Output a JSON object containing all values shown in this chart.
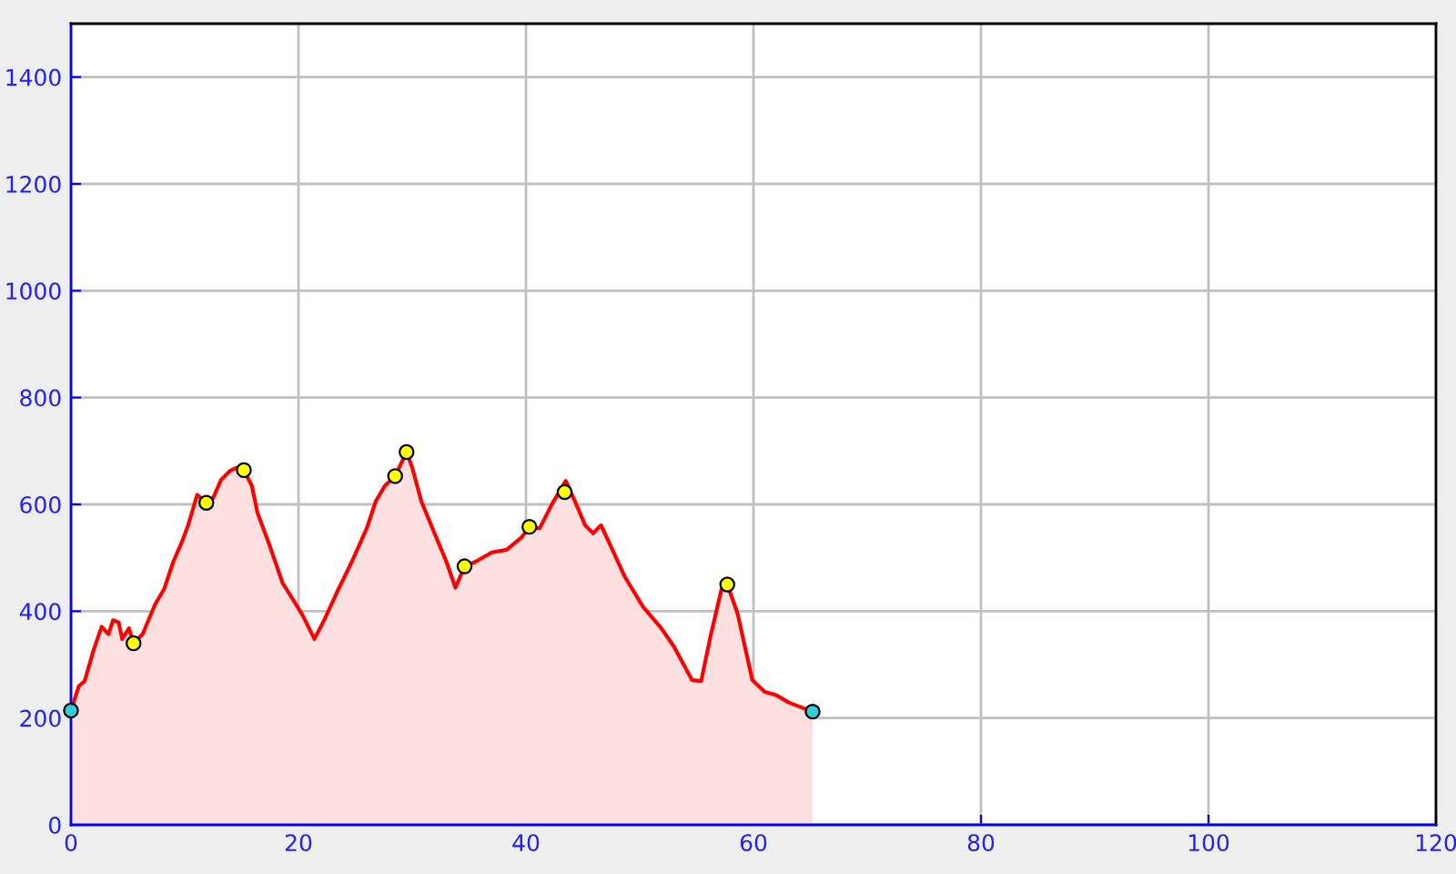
{
  "chart_data": {
    "type": "area",
    "xlim": [
      0,
      120
    ],
    "ylim": [
      0,
      1500
    ],
    "xticks": [
      0,
      20,
      40,
      60,
      80,
      100,
      120
    ],
    "yticks": [
      0,
      200,
      400,
      600,
      800,
      1000,
      1200,
      1400
    ],
    "grid": true,
    "series": [
      {
        "color": "#ff0000",
        "x": [
          0,
          0.7,
          1.2,
          2.0,
          2.7,
          3.3,
          3.7,
          4.2,
          4.5,
          5.1,
          5.5,
          6.3,
          7.4,
          8.2,
          9.0,
          9.8,
          10.3,
          11.1,
          11.9,
          12.5,
          13.2,
          14.0,
          14.6,
          15.2,
          15.9,
          16.4,
          17.5,
          18.6,
          19.6,
          20.4,
          21.4,
          22.3,
          23.4,
          24.7,
          26.0,
          26.8,
          27.6,
          28.5,
          29.1,
          29.5,
          30.0,
          30.8,
          31.9,
          33.0,
          33.8,
          34.6,
          35.6,
          37.0,
          38.3,
          39.6,
          40.3,
          41.2,
          42.3,
          43.5,
          44.4,
          45.2,
          45.9,
          46.6,
          47.6,
          48.7,
          50.3,
          51.9,
          53.0,
          54.6,
          55.4,
          56.2,
          57.2,
          57.7,
          58.6,
          59.9,
          61.0,
          62.0,
          63.1,
          65.2
        ],
        "values": [
          214,
          260,
          269,
          328,
          371,
          357,
          383,
          379,
          348,
          368,
          340,
          357,
          413,
          442,
          493,
          532,
          561,
          618,
          603,
          612,
          646,
          663,
          669,
          664,
          635,
          584,
          521,
          453,
          419,
          391,
          348,
          385,
          436,
          493,
          555,
          606,
          635,
          653,
          680,
          698,
          669,
          606,
          549,
          493,
          444,
          484,
          493,
          510,
          515,
          538,
          558,
          555,
          601,
          644,
          601,
          561,
          546,
          561,
          515,
          464,
          408,
          368,
          334,
          271,
          269,
          351,
          442,
          450,
          396,
          271,
          249,
          243,
          229,
          212
        ]
      },
      {
        "type": "scatter",
        "color": "#ffff00",
        "marker": "circle",
        "x": [
          5.5,
          11.9,
          15.2,
          28.5,
          29.5,
          34.6,
          40.3,
          43.4,
          57.7
        ],
        "values": [
          340,
          603,
          664,
          653,
          698,
          484,
          558,
          623,
          450
        ]
      },
      {
        "type": "scatter",
        "color": "#33ccdd",
        "marker": "circle",
        "x": [
          0,
          65.2
        ],
        "values": [
          214,
          212
        ]
      }
    ]
  }
}
